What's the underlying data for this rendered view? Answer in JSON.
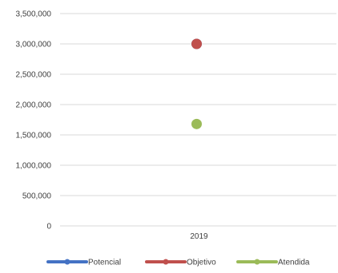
{
  "chart_data": {
    "type": "line",
    "categories": [
      "2019"
    ],
    "series": [
      {
        "name": "Potencial",
        "values": [
          3000000
        ],
        "color": "#4472C4"
      },
      {
        "name": "Objetivo",
        "values": [
          3000000
        ],
        "color": "#C0504D"
      },
      {
        "name": "Atendida",
        "values": [
          1680000
        ],
        "color": "#9BBB59"
      }
    ],
    "ylim": [
      0,
      3500000
    ],
    "y_ticks": [
      0,
      500000,
      1000000,
      1500000,
      2000000,
      2500000,
      3000000,
      3500000
    ],
    "y_tick_labels": [
      "0",
      "500,000",
      "1,000,000",
      "1,500,000",
      "2,000,000",
      "2,500,000",
      "3,000,000",
      "3,500,000"
    ],
    "grid": true,
    "legend_position": "bottom",
    "title": "",
    "xlabel": "",
    "ylabel": ""
  }
}
